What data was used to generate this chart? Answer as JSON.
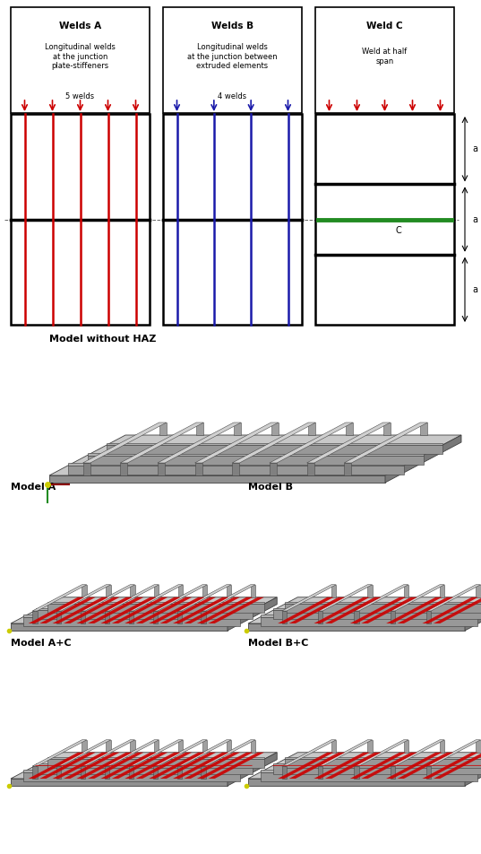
{
  "welds_A_title": "Welds A",
  "welds_A_desc": "Longitudinal welds\nat the junction\nplate-stiffeners",
  "welds_A_count": "5 welds",
  "welds_B_title": "Welds B",
  "welds_B_desc": "Longitudinal welds\nat the junction between\nextruded elements",
  "welds_B_count": "4 welds",
  "weld_C_title": "Weld C",
  "weld_C_desc": "Weld at half\nspan",
  "red_color": "#cc0000",
  "blue_color": "#1a1aaa",
  "green_color": "#228B22",
  "black_color": "#000000",
  "plate_gray": "#C8C8C8",
  "stiff_gray": "#A0A0A0",
  "stiff_top": "#D0D0D0",
  "stiff_side": "#808080",
  "edge_color": "#404040",
  "bg_color": "#ffffff",
  "model_labels": [
    "Model without HAZ",
    "Model A",
    "Model B",
    "Model A+C",
    "Model B+C"
  ]
}
